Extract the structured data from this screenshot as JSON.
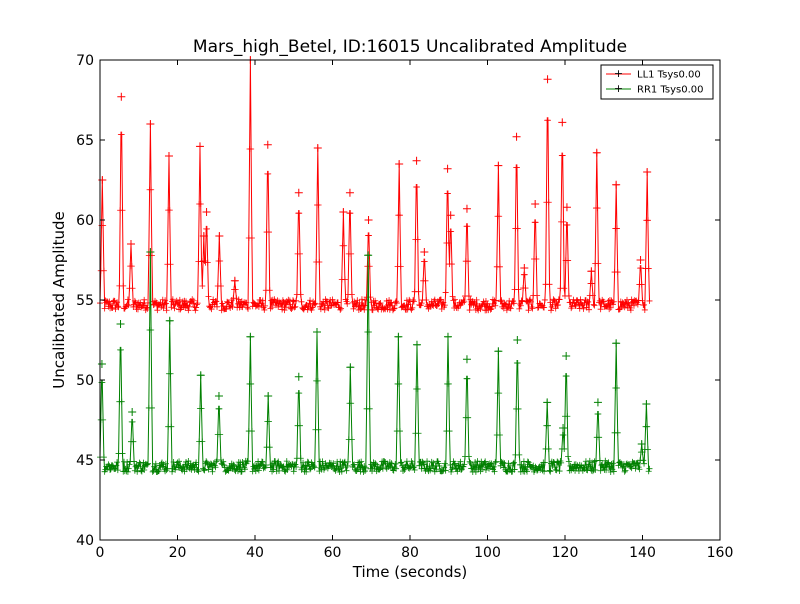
{
  "chart_data": {
    "type": "line",
    "title": "Mars_high_Betel, ID:16015 Uncalibrated Amplitude",
    "xlabel": "Time (seconds)",
    "ylabel": "Uncalibrated Amplitude",
    "xlim": [
      0,
      160
    ],
    "ylim": [
      40,
      70
    ],
    "xticks": [
      0,
      20,
      40,
      60,
      80,
      100,
      120,
      140,
      160
    ],
    "yticks": [
      40,
      45,
      50,
      55,
      60,
      65,
      70
    ],
    "grid": false,
    "legend_position": "top-right",
    "series": [
      {
        "name": "LL1 Tsys0.00",
        "color": "#ff0000",
        "marker": "+",
        "baseline": 54.7,
        "x_end": 142,
        "peaks": [
          [
            0.6,
            62.5
          ],
          [
            5.5,
            67.7
          ],
          [
            8.0,
            58.5
          ],
          [
            13.0,
            66.0
          ],
          [
            17.8,
            64.0
          ],
          [
            25.8,
            64.6
          ],
          [
            26.8,
            59.0
          ],
          [
            27.5,
            60.5
          ],
          [
            30.8,
            59.0
          ],
          [
            34.8,
            56.2
          ],
          [
            38.8,
            70.0
          ],
          [
            43.3,
            64.7
          ],
          [
            51.3,
            61.7
          ],
          [
            56.2,
            64.5
          ],
          [
            62.8,
            60.5
          ],
          [
            64.5,
            61.7
          ],
          [
            69.3,
            60.0
          ],
          [
            77.2,
            63.5
          ],
          [
            81.7,
            63.7
          ],
          [
            83.7,
            58.0
          ],
          [
            89.7,
            63.2
          ],
          [
            90.5,
            60.3
          ],
          [
            94.7,
            60.7
          ],
          [
            102.8,
            63.4
          ],
          [
            107.5,
            65.2
          ],
          [
            109.5,
            57.0
          ],
          [
            112.3,
            61.0
          ],
          [
            115.5,
            68.8
          ],
          [
            119.3,
            66.1
          ],
          [
            120.5,
            60.8
          ],
          [
            126.8,
            56.8
          ],
          [
            128.2,
            64.2
          ],
          [
            133.2,
            62.2
          ],
          [
            139.5,
            57.5
          ],
          [
            141.2,
            63.0
          ]
        ]
      },
      {
        "name": "RR1 Tsys0.00",
        "color": "#008000",
        "marker": "+",
        "baseline": 44.6,
        "x_end": 142,
        "peaks": [
          [
            0.5,
            51.0
          ],
          [
            5.3,
            53.5
          ],
          [
            8.3,
            48.0
          ],
          [
            13.0,
            58.0
          ],
          [
            18.0,
            53.7
          ],
          [
            26.0,
            50.3
          ],
          [
            30.7,
            49.0
          ],
          [
            38.8,
            52.7
          ],
          [
            43.4,
            49.0
          ],
          [
            51.3,
            50.2
          ],
          [
            56.0,
            53.0
          ],
          [
            64.6,
            50.8
          ],
          [
            69.2,
            57.8
          ],
          [
            77.0,
            52.7
          ],
          [
            81.8,
            52.2
          ],
          [
            89.8,
            52.7
          ],
          [
            94.7,
            51.3
          ],
          [
            102.8,
            51.8
          ],
          [
            107.7,
            52.5
          ],
          [
            115.4,
            48.6
          ],
          [
            119.5,
            47.0
          ],
          [
            120.3,
            51.5
          ],
          [
            128.5,
            48.6
          ],
          [
            133.2,
            52.3
          ],
          [
            139.8,
            46.0
          ],
          [
            141.0,
            48.5
          ]
        ]
      }
    ]
  }
}
